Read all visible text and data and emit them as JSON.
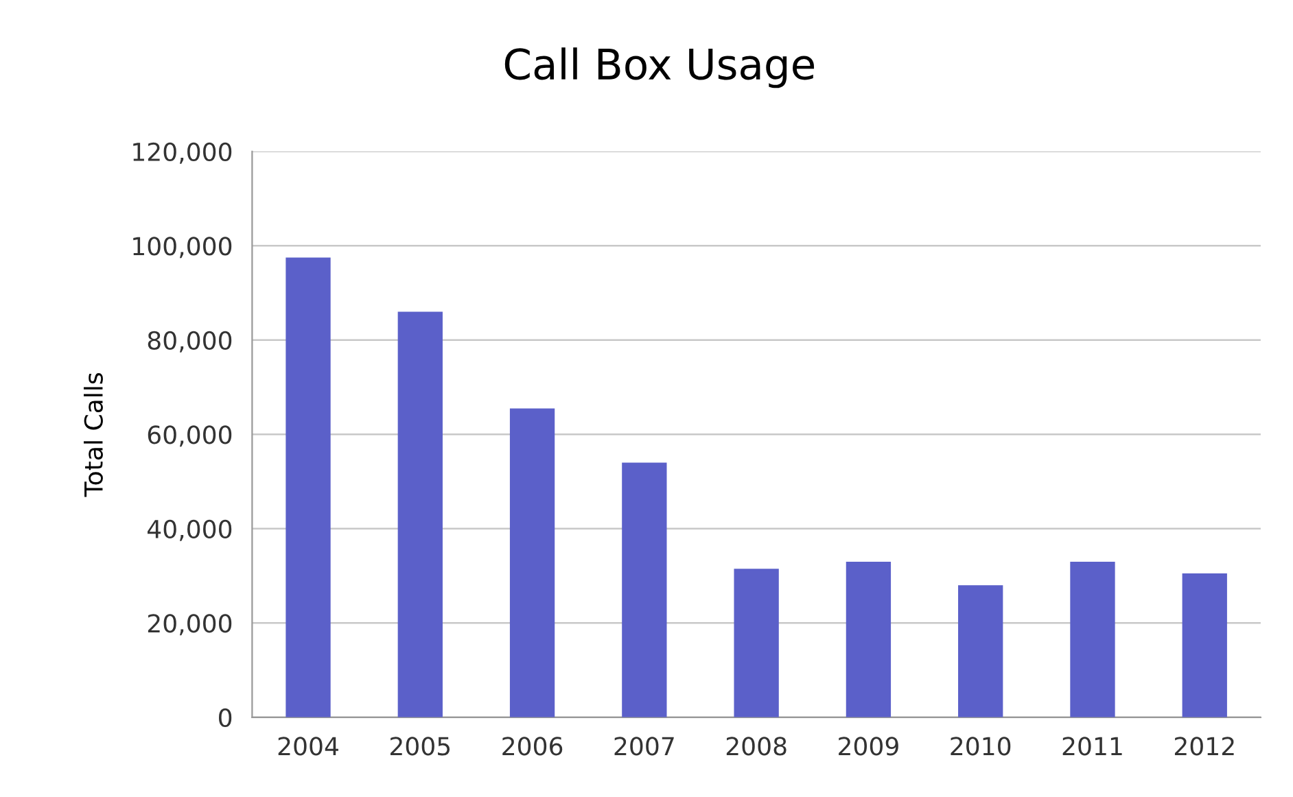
{
  "chart_data": {
    "type": "bar",
    "title": "Call Box Usage",
    "ylabel": "Total Calls",
    "categories": [
      "2004",
      "2005",
      "2006",
      "2007",
      "2008",
      "2009",
      "2010",
      "2011",
      "2012"
    ],
    "values": [
      97500,
      86000,
      65500,
      54000,
      31500,
      33000,
      28000,
      33000,
      30500
    ],
    "color": "#5b60c9",
    "ylim": [
      0,
      120000
    ],
    "yticks": [
      {
        "value": 0,
        "label": "0"
      },
      {
        "value": 20000,
        "label": "20,000"
      },
      {
        "value": 40000,
        "label": "40,000"
      },
      {
        "value": 60000,
        "label": "60,000"
      },
      {
        "value": 80000,
        "label": "80,000"
      },
      {
        "value": 100000,
        "label": "100,000"
      },
      {
        "value": 120000,
        "label": "120,000"
      }
    ],
    "grid": "y",
    "legend": false
  }
}
